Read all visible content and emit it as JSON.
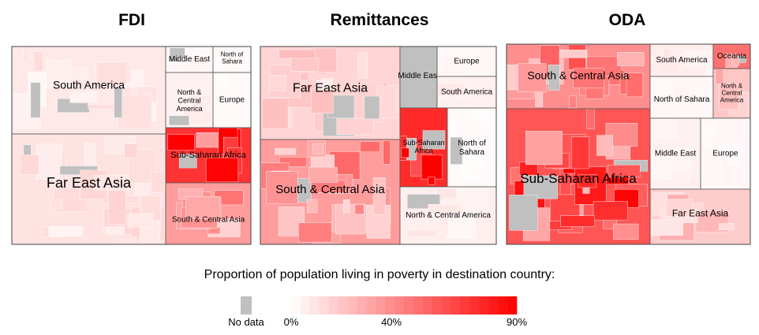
{
  "chart_data": {
    "type": "treemap",
    "panels": [
      {
        "title": "FDI",
        "regions": [
          {
            "name": "South America",
            "poverty": 0.08
          },
          {
            "name": "Far East Asia",
            "poverty": 0.1
          },
          {
            "name": "Middle East",
            "poverty": 0.03
          },
          {
            "name": "North of Sahara",
            "poverty": 0.02
          },
          {
            "name": "North & Central America",
            "poverty": 0.05
          },
          {
            "name": "Europe",
            "poverty": 0.02
          },
          {
            "name": "Sub-Saharan Africa",
            "poverty": 0.72
          },
          {
            "name": "South & Central Asia",
            "poverty": 0.35
          }
        ]
      },
      {
        "title": "Remittances",
        "regions": [
          {
            "name": "Far East Asia",
            "poverty": 0.15
          },
          {
            "name": "South & Central Asia",
            "poverty": 0.35
          },
          {
            "name": "Middle East",
            "poverty": null
          },
          {
            "name": "Europe",
            "poverty": 0.03
          },
          {
            "name": "South America",
            "poverty": 0.05
          },
          {
            "name": "Sub-Saharan Africa",
            "poverty": 0.75
          },
          {
            "name": "North of Sahara",
            "poverty": 0.02
          },
          {
            "name": "North & Central America",
            "poverty": 0.06
          }
        ]
      },
      {
        "title": "ODA",
        "regions": [
          {
            "name": "South & Central Asia",
            "poverty": 0.4
          },
          {
            "name": "Sub-Saharan Africa",
            "poverty": 0.6
          },
          {
            "name": "South America",
            "poverty": 0.06
          },
          {
            "name": "Oceania",
            "poverty": 0.5
          },
          {
            "name": "North of Sahara",
            "poverty": 0.03
          },
          {
            "name": "North & Central America",
            "poverty": 0.2
          },
          {
            "name": "Middle East",
            "poverty": 0.05
          },
          {
            "name": "Europe",
            "poverty": 0.03
          },
          {
            "name": "Far East Asia",
            "poverty": 0.18
          }
        ]
      }
    ],
    "legend": {
      "title": "Proportion of population living in poverty in destination country:",
      "no_data_label": "No data",
      "tick_labels": [
        "0%",
        "40%",
        "90%"
      ],
      "tick_values": [
        0,
        0.4,
        0.9
      ],
      "range": [
        0,
        0.9
      ],
      "color_low": "#ffffff",
      "color_high": "#ff0000",
      "no_data_color": "#c0c0c0"
    }
  }
}
